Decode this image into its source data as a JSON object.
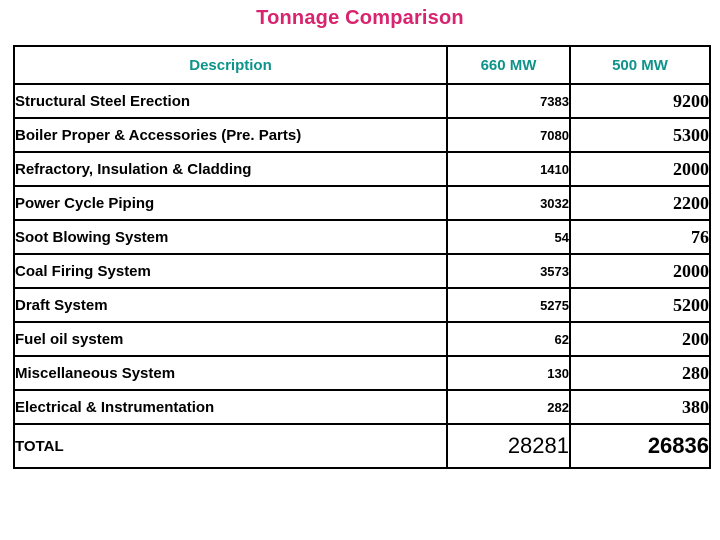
{
  "title": "Tonnage Comparison",
  "colors": {
    "title": "#d8246e",
    "header": "#0e938a",
    "border": "#000000"
  },
  "table": {
    "columns": [
      "Description",
      "660 MW",
      "500 MW"
    ],
    "rows": [
      {
        "description": "Structural Steel Erection",
        "mw660": "7383",
        "mw500": "9200"
      },
      {
        "description": "Boiler Proper & Accessories (Pre. Parts)",
        "mw660": "7080",
        "mw500": "5300"
      },
      {
        "description": "Refractory, Insulation & Cladding",
        "mw660": "1410",
        "mw500": "2000"
      },
      {
        "description": "Power Cycle Piping",
        "mw660": "3032",
        "mw500": "2200"
      },
      {
        "description": "Soot Blowing System",
        "mw660": "54",
        "mw500": "76"
      },
      {
        "description": "Coal Firing System",
        "mw660": "3573",
        "mw500": "2000"
      },
      {
        "description": "Draft System",
        "mw660": "5275",
        "mw500": "5200"
      },
      {
        "description": "Fuel oil system",
        "mw660": "62",
        "mw500": "200"
      },
      {
        "description": "Miscellaneous System",
        "mw660": "130",
        "mw500": "280"
      },
      {
        "description": "Electrical & Instrumentation",
        "mw660": "282",
        "mw500": "380"
      }
    ],
    "total": {
      "description": "TOTAL",
      "mw660": "28281",
      "mw500": "26836"
    }
  }
}
